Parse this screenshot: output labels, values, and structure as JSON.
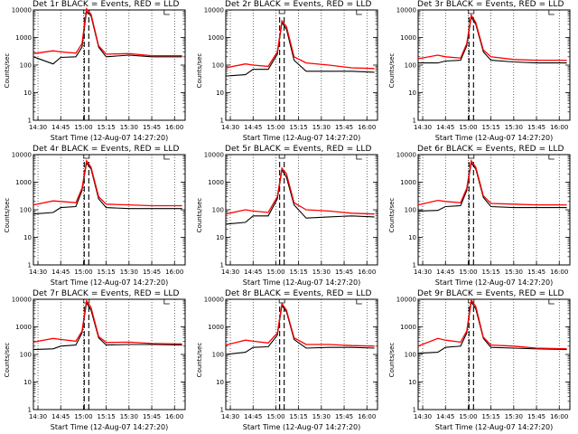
{
  "chart_data": [
    {
      "type": "line",
      "title": "Det 1r BLACK = Events, RED = LLD",
      "xlabel": "Start Time (12-Aug-07 14:27:20)",
      "ylabel": "Counts/sec",
      "x_tick_labels": [
        "14:30",
        "14:45",
        "15:00",
        "15:15",
        "15:30",
        "15:45",
        "16:00"
      ],
      "y_tick_labels": [
        "1",
        "10",
        "100",
        "1000",
        "10000"
      ],
      "ylim": [
        1,
        10000
      ],
      "y_scale": "log",
      "series": [
        {
          "color": "#000000",
          "x": [
            "14:27",
            "14:40",
            "14:45",
            "14:55",
            "14:59",
            "15:02",
            "15:05",
            "15:10",
            "15:15",
            "15:30",
            "15:45",
            "16:05"
          ],
          "values": [
            200,
            110,
            190,
            200,
            450,
            9000,
            6000,
            450,
            200,
            230,
            200,
            200
          ]
        },
        {
          "color": "#ff0000",
          "x": [
            "14:27",
            "14:40",
            "14:45",
            "14:55",
            "14:59",
            "15:02",
            "15:05",
            "15:10",
            "15:15",
            "15:30",
            "15:45",
            "16:05"
          ],
          "values": [
            260,
            330,
            300,
            270,
            600,
            11000,
            7000,
            500,
            250,
            260,
            220,
            220
          ]
        }
      ]
    },
    {
      "type": "line",
      "title": "Det 2r BLACK = Events, RED = LLD",
      "xlabel": "Start Time (12-Aug-07 14:27:20)",
      "ylabel": "Counts/sec",
      "x_tick_labels": [
        "14:30",
        "14:45",
        "15:00",
        "15:15",
        "15:30",
        "15:45",
        "16:00"
      ],
      "y_tick_labels": [
        "1",
        "10",
        "100",
        "1000",
        "10000"
      ],
      "ylim": [
        1,
        10000
      ],
      "y_scale": "log",
      "series": [
        {
          "color": "#000000",
          "x": [
            "14:27",
            "14:40",
            "14:45",
            "14:55",
            "15:01",
            "15:04",
            "15:07",
            "15:12",
            "15:20",
            "15:35",
            "15:50",
            "16:05"
          ],
          "values": [
            40,
            45,
            70,
            70,
            250,
            3500,
            2000,
            150,
            60,
            60,
            60,
            55
          ]
        },
        {
          "color": "#ff0000",
          "x": [
            "14:27",
            "14:40",
            "14:45",
            "14:55",
            "15:01",
            "15:04",
            "15:07",
            "15:12",
            "15:20",
            "15:35",
            "15:50",
            "16:05"
          ],
          "values": [
            80,
            110,
            100,
            90,
            300,
            4000,
            2500,
            200,
            120,
            100,
            80,
            75
          ]
        }
      ]
    },
    {
      "type": "line",
      "title": "Det 3r BLACK = Events, RED = LLD",
      "xlabel": "Start Time (12-Aug-07 14:27:20)",
      "ylabel": "Counts/sec",
      "x_tick_labels": [
        "14:30",
        "14:45",
        "15:00",
        "15:15",
        "15:30",
        "15:45",
        "16:00"
      ],
      "y_tick_labels": [
        "1",
        "10",
        "100",
        "1000",
        "10000"
      ],
      "ylim": [
        1,
        10000
      ],
      "y_scale": "log",
      "series": [
        {
          "color": "#000000",
          "x": [
            "14:27",
            "14:40",
            "14:45",
            "14:55",
            "14:59",
            "15:02",
            "15:05",
            "15:10",
            "15:15",
            "15:30",
            "15:45",
            "16:05"
          ],
          "values": [
            120,
            120,
            140,
            150,
            500,
            5500,
            3000,
            300,
            150,
            130,
            120,
            120
          ]
        },
        {
          "color": "#ff0000",
          "x": [
            "14:27",
            "14:40",
            "14:45",
            "14:55",
            "14:59",
            "15:02",
            "15:05",
            "15:10",
            "15:15",
            "15:30",
            "15:45",
            "16:05"
          ],
          "values": [
            170,
            230,
            200,
            180,
            600,
            6500,
            3500,
            350,
            200,
            160,
            150,
            150
          ]
        }
      ]
    },
    {
      "type": "line",
      "title": "Det 4r BLACK = Events, RED = LLD",
      "xlabel": "Start Time (12-Aug-07 14:27:20)",
      "ylabel": "Counts/sec",
      "x_tick_labels": [
        "14:30",
        "14:45",
        "15:00",
        "15:15",
        "15:30",
        "15:45",
        "16:00"
      ],
      "y_tick_labels": [
        "1",
        "10",
        "100",
        "1000",
        "10000"
      ],
      "ylim": [
        1,
        10000
      ],
      "y_scale": "log",
      "series": [
        {
          "color": "#000000",
          "x": [
            "14:27",
            "14:40",
            "14:45",
            "14:55",
            "14:59",
            "15:02",
            "15:05",
            "15:10",
            "15:15",
            "15:30",
            "15:45",
            "16:05"
          ],
          "values": [
            70,
            80,
            120,
            130,
            500,
            5000,
            3000,
            250,
            120,
            110,
            110,
            110
          ]
        },
        {
          "color": "#ff0000",
          "x": [
            "14:27",
            "14:40",
            "14:45",
            "14:55",
            "14:59",
            "15:02",
            "15:05",
            "15:10",
            "15:15",
            "15:30",
            "15:45",
            "16:05"
          ],
          "values": [
            150,
            210,
            200,
            180,
            600,
            6000,
            3500,
            300,
            160,
            150,
            140,
            140
          ]
        }
      ]
    },
    {
      "type": "line",
      "title": "Det 5r BLACK = Events, RED = LLD",
      "xlabel": "Start Time (12-Aug-07 14:27:20)",
      "ylabel": "Counts/sec",
      "x_tick_labels": [
        "14:30",
        "14:45",
        "15:00",
        "15:15",
        "15:30",
        "15:45",
        "16:00"
      ],
      "y_tick_labels": [
        "1",
        "10",
        "100",
        "1000",
        "10000"
      ],
      "ylim": [
        1,
        10000
      ],
      "y_scale": "log",
      "series": [
        {
          "color": "#000000",
          "x": [
            "14:27",
            "14:40",
            "14:45",
            "14:55",
            "15:01",
            "15:04",
            "15:07",
            "15:12",
            "15:20",
            "15:35",
            "15:50",
            "16:05"
          ],
          "values": [
            30,
            35,
            60,
            60,
            250,
            2800,
            1500,
            150,
            50,
            55,
            60,
            55
          ]
        },
        {
          "color": "#ff0000",
          "x": [
            "14:27",
            "14:40",
            "14:45",
            "14:55",
            "15:01",
            "15:04",
            "15:07",
            "15:12",
            "15:20",
            "15:35",
            "15:50",
            "16:05"
          ],
          "values": [
            70,
            100,
            90,
            80,
            300,
            3200,
            2000,
            180,
            100,
            90,
            75,
            70
          ]
        }
      ]
    },
    {
      "type": "line",
      "title": "Det 6r BLACK = Events, RED = LLD",
      "xlabel": "Start Time (12-Aug-07 14:27:20)",
      "ylabel": "Counts/sec",
      "x_tick_labels": [
        "14:30",
        "14:45",
        "15:00",
        "15:15",
        "15:30",
        "15:45",
        "16:00"
      ],
      "y_tick_labels": [
        "1",
        "10",
        "100",
        "1000",
        "10000"
      ],
      "ylim": [
        1,
        10000
      ],
      "y_scale": "log",
      "series": [
        {
          "color": "#000000",
          "x": [
            "14:27",
            "14:40",
            "14:45",
            "14:55",
            "14:59",
            "15:02",
            "15:05",
            "15:10",
            "15:15",
            "15:30",
            "15:45",
            "16:05"
          ],
          "values": [
            90,
            95,
            130,
            140,
            500,
            5000,
            3000,
            280,
            130,
            120,
            120,
            120
          ]
        },
        {
          "color": "#ff0000",
          "x": [
            "14:27",
            "14:40",
            "14:45",
            "14:55",
            "14:59",
            "15:02",
            "15:05",
            "15:10",
            "15:15",
            "15:30",
            "15:45",
            "16:05"
          ],
          "values": [
            150,
            220,
            200,
            180,
            600,
            6000,
            3500,
            320,
            170,
            160,
            150,
            150
          ]
        }
      ]
    },
    {
      "type": "line",
      "title": "Det 7r BLACK = Events, RED = LLD",
      "xlabel": "Start Time (12-Aug-07 14:27:20)",
      "ylabel": "Counts/sec",
      "x_tick_labels": [
        "14:30",
        "14:45",
        "15:00",
        "15:15",
        "15:30",
        "15:45",
        "16:00"
      ],
      "y_tick_labels": [
        "1",
        "10",
        "100",
        "1000",
        "10000"
      ],
      "ylim": [
        1,
        10000
      ],
      "y_scale": "log",
      "series": [
        {
          "color": "#000000",
          "x": [
            "14:27",
            "14:40",
            "14:45",
            "14:55",
            "14:59",
            "15:02",
            "15:05",
            "15:10",
            "15:15",
            "15:30",
            "15:45",
            "16:05"
          ],
          "values": [
            150,
            160,
            200,
            220,
            600,
            7500,
            4000,
            400,
            220,
            230,
            230,
            220
          ]
        },
        {
          "color": "#ff0000",
          "x": [
            "14:27",
            "14:40",
            "14:45",
            "14:55",
            "14:59",
            "15:02",
            "15:05",
            "15:10",
            "15:15",
            "15:30",
            "15:45",
            "16:05"
          ],
          "values": [
            280,
            380,
            350,
            300,
            700,
            9000,
            5000,
            450,
            270,
            280,
            250,
            240
          ]
        }
      ]
    },
    {
      "type": "line",
      "title": "Det 8r BLACK = Events, RED = LLD",
      "xlabel": "Start Time (12-Aug-07 14:27:20)",
      "ylabel": "Counts/sec",
      "x_tick_labels": [
        "14:30",
        "14:45",
        "15:00",
        "15:15",
        "15:30",
        "15:45",
        "16:00"
      ],
      "y_tick_labels": [
        "1",
        "10",
        "100",
        "1000",
        "10000"
      ],
      "ylim": [
        1,
        10000
      ],
      "y_scale": "log",
      "series": [
        {
          "color": "#000000",
          "x": [
            "14:27",
            "14:40",
            "14:45",
            "14:55",
            "15:01",
            "15:04",
            "15:07",
            "15:12",
            "15:20",
            "15:35",
            "15:50",
            "16:05"
          ],
          "values": [
            100,
            120,
            180,
            190,
            500,
            6000,
            3500,
            350,
            170,
            180,
            180,
            170
          ]
        },
        {
          "color": "#ff0000",
          "x": [
            "14:27",
            "14:40",
            "14:45",
            "14:55",
            "15:01",
            "15:04",
            "15:07",
            "15:12",
            "15:20",
            "15:35",
            "15:50",
            "16:05"
          ],
          "values": [
            220,
            330,
            300,
            260,
            600,
            7000,
            4000,
            400,
            230,
            230,
            210,
            200
          ]
        }
      ]
    },
    {
      "type": "line",
      "title": "Det 9r BLACK = Events, RED = LLD",
      "xlabel": "Start Time (12-Aug-07 14:27:20)",
      "ylabel": "Counts/sec",
      "x_tick_labels": [
        "14:30",
        "14:45",
        "15:00",
        "15:15",
        "15:30",
        "15:45",
        "16:00"
      ],
      "y_tick_labels": [
        "1",
        "10",
        "100",
        "1000",
        "10000"
      ],
      "ylim": [
        1,
        10000
      ],
      "y_scale": "log",
      "series": [
        {
          "color": "#000000",
          "x": [
            "14:27",
            "14:40",
            "14:45",
            "14:55",
            "14:59",
            "15:02",
            "15:05",
            "15:10",
            "15:15",
            "15:30",
            "15:45",
            "16:05"
          ],
          "values": [
            110,
            120,
            180,
            200,
            600,
            8000,
            4500,
            380,
            180,
            170,
            160,
            150
          ]
        },
        {
          "color": "#ff0000",
          "x": [
            "14:27",
            "14:40",
            "14:45",
            "14:55",
            "14:59",
            "15:02",
            "15:05",
            "15:10",
            "15:15",
            "15:30",
            "15:45",
            "16:05"
          ],
          "values": [
            200,
            380,
            330,
            280,
            700,
            9500,
            5500,
            420,
            220,
            200,
            170,
            160
          ]
        }
      ]
    }
  ]
}
